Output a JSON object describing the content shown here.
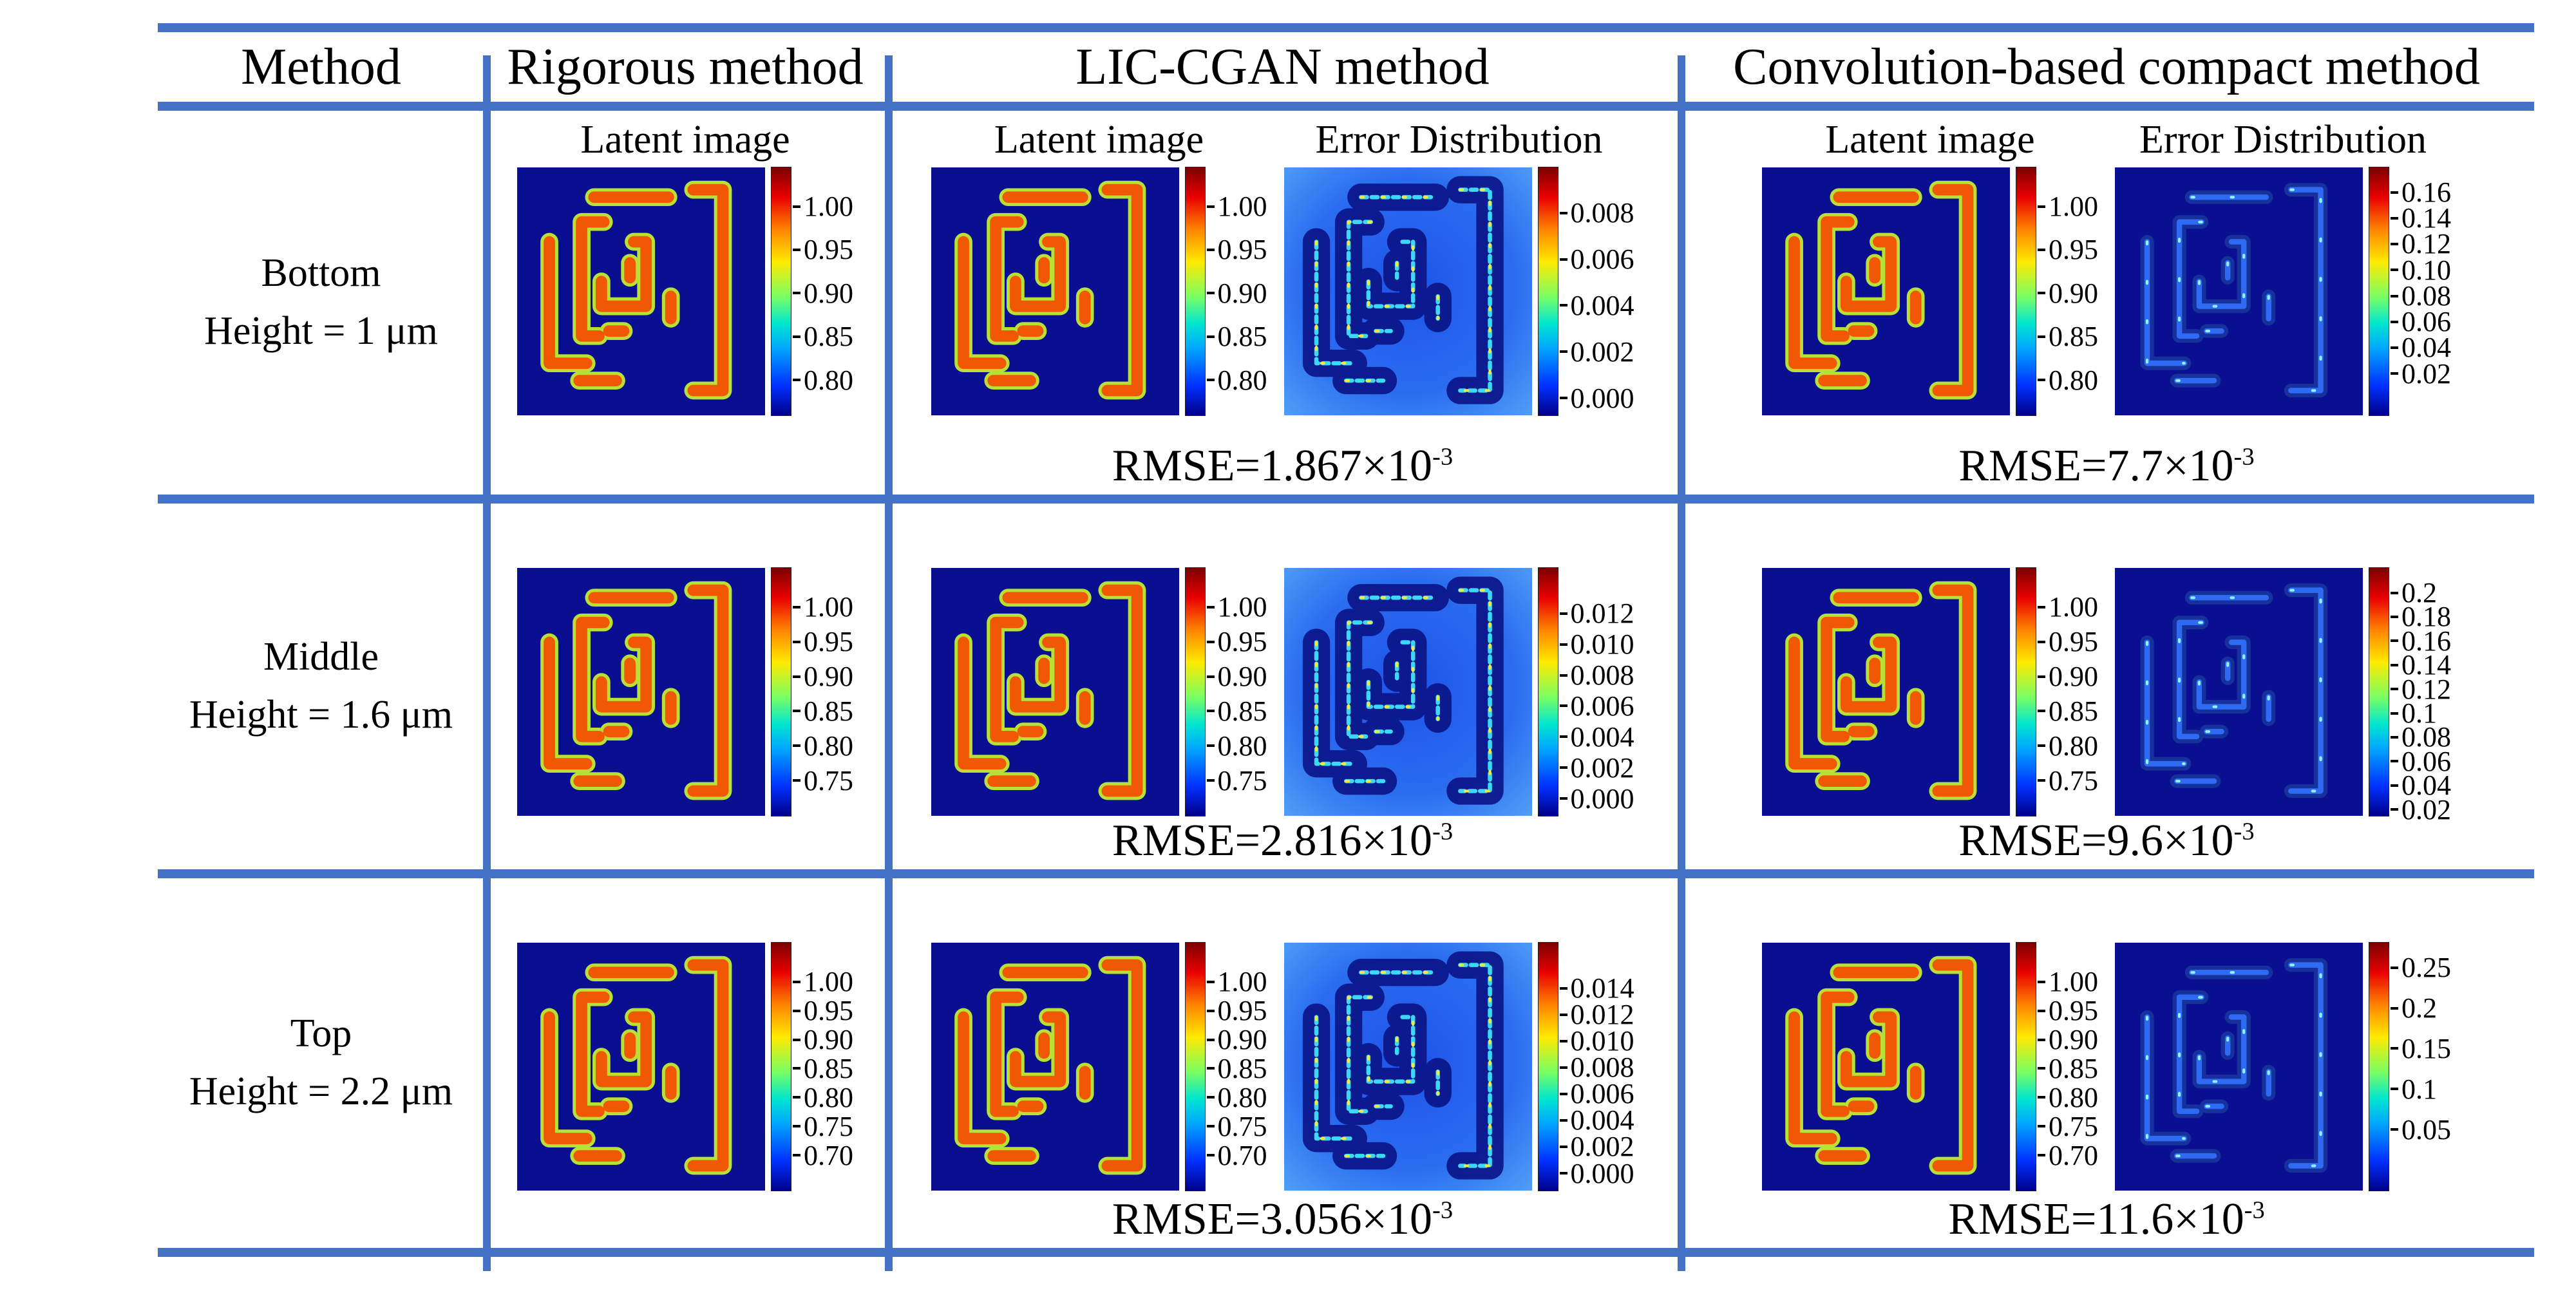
{
  "figure": {
    "colors": {
      "accent": "#4472c4",
      "heatmap_background": "#0a0e91",
      "pattern_core": "#f05806",
      "pattern_edge": "#b9e135",
      "lic_error_background": "#2a6cf0"
    },
    "header": {
      "method": "Method",
      "rigorous": "Rigorous method",
      "lic": "LIC-CGAN method",
      "conv": "Convolution-based compact method"
    },
    "titles": {
      "latent": "Latent image",
      "error": "Error Distribution"
    },
    "rows": [
      {
        "label1": "Bottom",
        "label2": "Height = 1 μm",
        "rig_latent_ticks": [
          "1.00",
          "0.95",
          "0.90",
          "0.85",
          "0.80"
        ],
        "lic_latent_ticks": [
          "1.00",
          "0.95",
          "0.90",
          "0.85",
          "0.80"
        ],
        "lic_error_ticks": [
          "0.008",
          "0.006",
          "0.004",
          "0.002",
          "0.000"
        ],
        "lic_rmse_base": "RMSE=1.867×10",
        "lic_rmse_exp": "-3",
        "conv_latent_ticks": [
          "1.00",
          "0.95",
          "0.90",
          "0.85",
          "0.80"
        ],
        "conv_error_ticks": [
          "0.16",
          "0.14",
          "0.12",
          "0.10",
          "0.08",
          "0.06",
          "0.04",
          "0.02"
        ],
        "conv_rmse_base": "RMSE=7.7×10",
        "conv_rmse_exp": "-3"
      },
      {
        "label1": "Middle",
        "label2": "Height = 1.6 μm",
        "rig_latent_ticks": [
          "1.00",
          "0.95",
          "0.90",
          "0.85",
          "0.80",
          "0.75"
        ],
        "lic_latent_ticks": [
          "1.00",
          "0.95",
          "0.90",
          "0.85",
          "0.80",
          "0.75"
        ],
        "lic_error_ticks": [
          "0.012",
          "0.010",
          "0.008",
          "0.006",
          "0.004",
          "0.002",
          "0.000"
        ],
        "lic_rmse_base": "RMSE=2.816×10",
        "lic_rmse_exp": "-3",
        "conv_latent_ticks": [
          "1.00",
          "0.95",
          "0.90",
          "0.85",
          "0.80",
          "0.75"
        ],
        "conv_error_ticks": [
          "0.2",
          "0.18",
          "0.16",
          "0.14",
          "0.12",
          "0.1",
          "0.08",
          "0.06",
          "0.04",
          "0.02"
        ],
        "conv_rmse_base": "RMSE=9.6×10",
        "conv_rmse_exp": "-3"
      },
      {
        "label1": "Top",
        "label2": "Height = 2.2 μm",
        "rig_latent_ticks": [
          "1.00",
          "0.95",
          "0.90",
          "0.85",
          "0.80",
          "0.75",
          "0.70"
        ],
        "lic_latent_ticks": [
          "1.00",
          "0.95",
          "0.90",
          "0.85",
          "0.80",
          "0.75",
          "0.70"
        ],
        "lic_error_ticks": [
          "0.014",
          "0.012",
          "0.010",
          "0.008",
          "0.006",
          "0.004",
          "0.002",
          "0.000"
        ],
        "lic_rmse_base": "RMSE=3.056×10",
        "lic_rmse_exp": "-3",
        "conv_latent_ticks": [
          "1.00",
          "0.95",
          "0.90",
          "0.85",
          "0.80",
          "0.75",
          "0.70"
        ],
        "conv_error_ticks": [
          "0.25",
          "0.2",
          "0.15",
          "0.1",
          "0.05"
        ],
        "conv_rmse_base": "RMSE=11.6×10",
        "conv_rmse_exp": "-3"
      }
    ]
  }
}
